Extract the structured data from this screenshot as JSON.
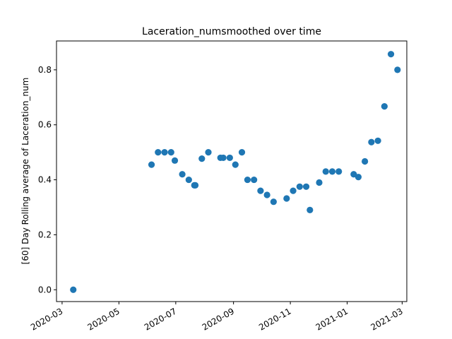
{
  "chart_data": {
    "type": "scatter",
    "title": "Laceration_numsmoothed over time",
    "xlabel": "",
    "ylabel": "[60] Day Rolling average of Laceration_num",
    "x_ticks": [
      "2020-03",
      "2020-05",
      "2020-07",
      "2020-09",
      "2020-11",
      "2021-01",
      "2021-03"
    ],
    "y_ticks": [
      "0.0",
      "0.2",
      "0.4",
      "0.6",
      "0.8"
    ],
    "xlim": [
      "2020-02-24",
      "2021-03-06"
    ],
    "ylim": [
      -0.043,
      0.905
    ],
    "grid": false,
    "marker_color": "#1f77b4",
    "points": [
      {
        "x": "2020-03-13",
        "y": 0.0
      },
      {
        "x": "2020-06-05",
        "y": 0.455
      },
      {
        "x": "2020-06-12",
        "y": 0.5
      },
      {
        "x": "2020-06-19",
        "y": 0.5
      },
      {
        "x": "2020-06-26",
        "y": 0.5
      },
      {
        "x": "2020-06-30",
        "y": 0.47
      },
      {
        "x": "2020-07-08",
        "y": 0.42
      },
      {
        "x": "2020-07-15",
        "y": 0.4
      },
      {
        "x": "2020-07-21",
        "y": 0.38
      },
      {
        "x": "2020-07-22",
        "y": 0.38
      },
      {
        "x": "2020-07-29",
        "y": 0.477
      },
      {
        "x": "2020-08-05",
        "y": 0.5
      },
      {
        "x": "2020-08-18",
        "y": 0.48
      },
      {
        "x": "2020-08-21",
        "y": 0.48
      },
      {
        "x": "2020-08-28",
        "y": 0.48
      },
      {
        "x": "2020-09-03",
        "y": 0.455
      },
      {
        "x": "2020-09-10",
        "y": 0.5
      },
      {
        "x": "2020-09-16",
        "y": 0.4
      },
      {
        "x": "2020-09-23",
        "y": 0.4
      },
      {
        "x": "2020-09-30",
        "y": 0.36
      },
      {
        "x": "2020-10-07",
        "y": 0.345
      },
      {
        "x": "2020-10-14",
        "y": 0.32
      },
      {
        "x": "2020-10-28",
        "y": 0.332
      },
      {
        "x": "2020-11-04",
        "y": 0.36
      },
      {
        "x": "2020-11-11",
        "y": 0.375
      },
      {
        "x": "2020-11-18",
        "y": 0.375
      },
      {
        "x": "2020-11-22",
        "y": 0.29
      },
      {
        "x": "2020-12-02",
        "y": 0.39
      },
      {
        "x": "2020-12-09",
        "y": 0.43
      },
      {
        "x": "2020-12-16",
        "y": 0.43
      },
      {
        "x": "2020-12-23",
        "y": 0.43
      },
      {
        "x": "2021-01-08",
        "y": 0.42
      },
      {
        "x": "2021-01-13",
        "y": 0.41
      },
      {
        "x": "2021-01-20",
        "y": 0.467
      },
      {
        "x": "2021-01-27",
        "y": 0.537
      },
      {
        "x": "2021-02-03",
        "y": 0.542
      },
      {
        "x": "2021-02-10",
        "y": 0.667
      },
      {
        "x": "2021-02-17",
        "y": 0.857
      },
      {
        "x": "2021-02-24",
        "y": 0.8
      }
    ]
  }
}
